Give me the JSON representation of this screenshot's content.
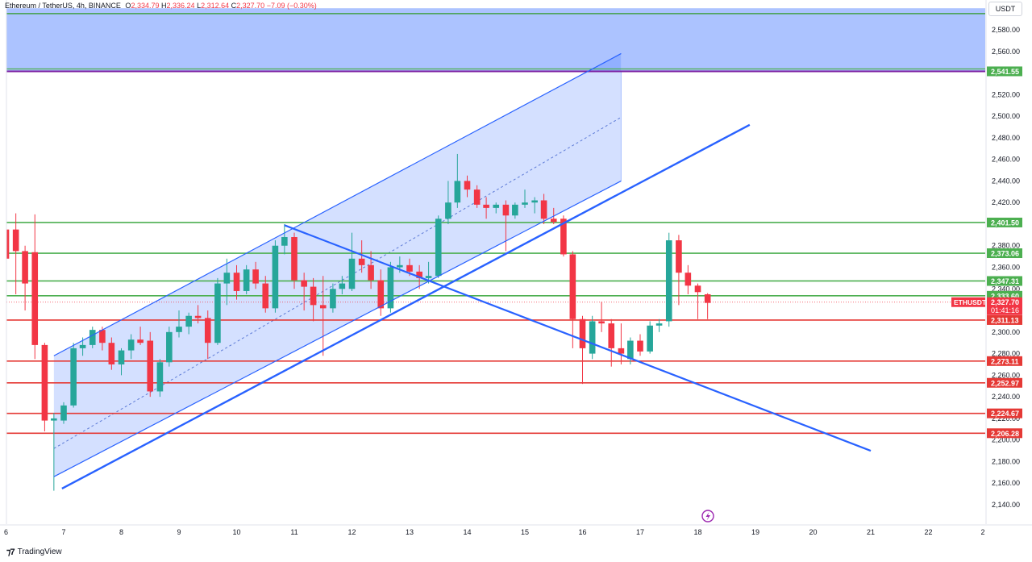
{
  "header": {
    "symbol": "Ethereum / TetherUS, 4h, BINANCE",
    "o_label": "O",
    "o_value": "2,334.79",
    "h_label": "H",
    "h_value": "2,336.24",
    "l_label": "L",
    "l_value": "2,312.64",
    "c_label": "C",
    "c_value": "2,327.70",
    "change": "−7.09 (−0.30%)"
  },
  "currency_button": "USDT",
  "footer": {
    "brand": "TradingView"
  },
  "colors": {
    "up": "#26a69a",
    "down": "#f23645",
    "green_level": "#4caf50",
    "red_level": "#e53935",
    "channel": "#2962ff",
    "zone": "#a8c0ff"
  },
  "chart_data": {
    "type": "candlestick",
    "x_ticks": [
      "6",
      "7",
      "8",
      "9",
      "10",
      "11",
      "12",
      "13",
      "14",
      "15",
      "16",
      "17",
      "18",
      "19",
      "20",
      "21",
      "22",
      "2"
    ],
    "y_ticks": [
      "2,580.00",
      "2,560.00",
      "2,540.00",
      "2,520.00",
      "2,500.00",
      "2,480.00",
      "2,460.00",
      "2,440.00",
      "2,420.00",
      "2,400.00",
      "2,380.00",
      "2,360.00",
      "2,340.00",
      "2,320.00",
      "2,300.00",
      "2,280.00",
      "2,260.00",
      "2,240.00",
      "2,220.00",
      "2,200.00",
      "2,180.00",
      "2,160.00",
      "2,140.00"
    ],
    "ylim": [
      2130,
      2600
    ],
    "price_levels_green": [
      {
        "value": 2541.55,
        "label": "2,541.55"
      },
      {
        "value": 2401.5,
        "label": "2,401.50"
      },
      {
        "value": 2373.06,
        "label": "2,373.06"
      },
      {
        "value": 2347.31,
        "label": "2,347.31"
      },
      {
        "value": 2333.6,
        "label": "2,333.60"
      }
    ],
    "price_levels_red": [
      {
        "value": 2311.13,
        "label": "2,311.13"
      },
      {
        "value": 2273.11,
        "label": "2,273.11"
      },
      {
        "value": 2252.97,
        "label": "2,252.97"
      },
      {
        "value": 2224.67,
        "label": "2,224.67"
      },
      {
        "value": 2206.28,
        "label": "2,206.28"
      }
    ],
    "current": {
      "symbol": "ETHUSDT",
      "price": "2,327.70",
      "countdown": "01:41:16",
      "value": 2327.7
    },
    "zone": {
      "from": 2541.55,
      "to": 2600
    },
    "candles": [
      {
        "x": 6.0,
        "o": 2395,
        "h": 2398,
        "l": 2360,
        "c": 2368
      },
      {
        "x": 6.17,
        "o": 2395,
        "h": 2410,
        "l": 2335,
        "c": 2375
      },
      {
        "x": 6.33,
        "o": 2375,
        "h": 2380,
        "l": 2320,
        "c": 2345
      },
      {
        "x": 6.5,
        "o": 2374,
        "h": 2409,
        "l": 2275,
        "c": 2288
      },
      {
        "x": 6.67,
        "o": 2288,
        "h": 2290,
        "l": 2208,
        "c": 2218
      },
      {
        "x": 6.83,
        "o": 2218,
        "h": 2225,
        "l": 2153,
        "c": 2220
      },
      {
        "x": 7.0,
        "o": 2218,
        "h": 2235,
        "l": 2215,
        "c": 2232
      },
      {
        "x": 7.17,
        "o": 2232,
        "h": 2290,
        "l": 2230,
        "c": 2285
      },
      {
        "x": 7.33,
        "o": 2285,
        "h": 2295,
        "l": 2278,
        "c": 2288
      },
      {
        "x": 7.5,
        "o": 2288,
        "h": 2305,
        "l": 2285,
        "c": 2302
      },
      {
        "x": 7.67,
        "o": 2302,
        "h": 2305,
        "l": 2283,
        "c": 2290
      },
      {
        "x": 7.83,
        "o": 2290,
        "h": 2295,
        "l": 2265,
        "c": 2270
      },
      {
        "x": 8.0,
        "o": 2270,
        "h": 2285,
        "l": 2260,
        "c": 2283
      },
      {
        "x": 8.17,
        "o": 2283,
        "h": 2298,
        "l": 2275,
        "c": 2293
      },
      {
        "x": 8.33,
        "o": 2293,
        "h": 2305,
        "l": 2288,
        "c": 2290
      },
      {
        "x": 8.5,
        "o": 2292,
        "h": 2300,
        "l": 2240,
        "c": 2245
      },
      {
        "x": 8.67,
        "o": 2245,
        "h": 2275,
        "l": 2240,
        "c": 2272
      },
      {
        "x": 8.83,
        "o": 2272,
        "h": 2305,
        "l": 2268,
        "c": 2300
      },
      {
        "x": 9.0,
        "o": 2300,
        "h": 2320,
        "l": 2295,
        "c": 2305
      },
      {
        "x": 9.17,
        "o": 2305,
        "h": 2318,
        "l": 2298,
        "c": 2315
      },
      {
        "x": 9.33,
        "o": 2315,
        "h": 2325,
        "l": 2308,
        "c": 2313
      },
      {
        "x": 9.5,
        "o": 2313,
        "h": 2320,
        "l": 2275,
        "c": 2290
      },
      {
        "x": 9.67,
        "o": 2290,
        "h": 2350,
        "l": 2288,
        "c": 2345
      },
      {
        "x": 9.83,
        "o": 2345,
        "h": 2368,
        "l": 2325,
        "c": 2355
      },
      {
        "x": 10.0,
        "o": 2355,
        "h": 2362,
        "l": 2330,
        "c": 2338
      },
      {
        "x": 10.17,
        "o": 2338,
        "h": 2362,
        "l": 2335,
        "c": 2358
      },
      {
        "x": 10.33,
        "o": 2358,
        "h": 2365,
        "l": 2340,
        "c": 2345
      },
      {
        "x": 10.5,
        "o": 2345,
        "h": 2352,
        "l": 2318,
        "c": 2322
      },
      {
        "x": 10.67,
        "o": 2322,
        "h": 2385,
        "l": 2318,
        "c": 2380
      },
      {
        "x": 10.83,
        "o": 2380,
        "h": 2400,
        "l": 2372,
        "c": 2388
      },
      {
        "x": 11.0,
        "o": 2388,
        "h": 2392,
        "l": 2340,
        "c": 2348
      },
      {
        "x": 11.17,
        "o": 2348,
        "h": 2355,
        "l": 2320,
        "c": 2342
      },
      {
        "x": 11.33,
        "o": 2342,
        "h": 2350,
        "l": 2310,
        "c": 2325
      },
      {
        "x": 11.5,
        "o": 2325,
        "h": 2352,
        "l": 2278,
        "c": 2322
      },
      {
        "x": 11.67,
        "o": 2322,
        "h": 2345,
        "l": 2318,
        "c": 2340
      },
      {
        "x": 11.83,
        "o": 2340,
        "h": 2352,
        "l": 2335,
        "c": 2345
      },
      {
        "x": 12.0,
        "o": 2340,
        "h": 2392,
        "l": 2338,
        "c": 2368
      },
      {
        "x": 12.17,
        "o": 2368,
        "h": 2385,
        "l": 2355,
        "c": 2362
      },
      {
        "x": 12.33,
        "o": 2362,
        "h": 2375,
        "l": 2340,
        "c": 2348
      },
      {
        "x": 12.5,
        "o": 2348,
        "h": 2358,
        "l": 2315,
        "c": 2322
      },
      {
        "x": 12.67,
        "o": 2322,
        "h": 2365,
        "l": 2318,
        "c": 2360
      },
      {
        "x": 12.83,
        "o": 2360,
        "h": 2370,
        "l": 2355,
        "c": 2362
      },
      {
        "x": 13.0,
        "o": 2362,
        "h": 2368,
        "l": 2352,
        "c": 2356
      },
      {
        "x": 13.17,
        "o": 2356,
        "h": 2362,
        "l": 2340,
        "c": 2350
      },
      {
        "x": 13.33,
        "o": 2350,
        "h": 2365,
        "l": 2345,
        "c": 2352
      },
      {
        "x": 13.5,
        "o": 2352,
        "h": 2408,
        "l": 2350,
        "c": 2405
      },
      {
        "x": 13.67,
        "o": 2405,
        "h": 2440,
        "l": 2400,
        "c": 2420
      },
      {
        "x": 13.83,
        "o": 2420,
        "h": 2465,
        "l": 2415,
        "c": 2440
      },
      {
        "x": 14.0,
        "o": 2440,
        "h": 2445,
        "l": 2425,
        "c": 2432
      },
      {
        "x": 14.17,
        "o": 2432,
        "h": 2436,
        "l": 2415,
        "c": 2418
      },
      {
        "x": 14.33,
        "o": 2418,
        "h": 2425,
        "l": 2405,
        "c": 2415
      },
      {
        "x": 14.5,
        "o": 2415,
        "h": 2420,
        "l": 2410,
        "c": 2418
      },
      {
        "x": 14.67,
        "o": 2418,
        "h": 2422,
        "l": 2375,
        "c": 2408
      },
      {
        "x": 14.83,
        "o": 2408,
        "h": 2420,
        "l": 2405,
        "c": 2418
      },
      {
        "x": 15.0,
        "o": 2418,
        "h": 2432,
        "l": 2415,
        "c": 2420
      },
      {
        "x": 15.17,
        "o": 2420,
        "h": 2425,
        "l": 2410,
        "c": 2422
      },
      {
        "x": 15.33,
        "o": 2422,
        "h": 2428,
        "l": 2400,
        "c": 2405
      },
      {
        "x": 15.5,
        "o": 2405,
        "h": 2415,
        "l": 2400,
        "c": 2402
      },
      {
        "x": 15.67,
        "o": 2405,
        "h": 2408,
        "l": 2370,
        "c": 2372
      },
      {
        "x": 15.83,
        "o": 2372,
        "h": 2375,
        "l": 2285,
        "c": 2312
      },
      {
        "x": 16.0,
        "o": 2312,
        "h": 2315,
        "l": 2252,
        "c": 2285
      },
      {
        "x": 16.17,
        "o": 2280,
        "h": 2315,
        "l": 2275,
        "c": 2310
      },
      {
        "x": 16.33,
        "o": 2310,
        "h": 2328,
        "l": 2300,
        "c": 2308
      },
      {
        "x": 16.5,
        "o": 2308,
        "h": 2312,
        "l": 2268,
        "c": 2285
      },
      {
        "x": 16.67,
        "o": 2285,
        "h": 2308,
        "l": 2270,
        "c": 2280
      },
      {
        "x": 16.83,
        "o": 2275,
        "h": 2295,
        "l": 2270,
        "c": 2292
      },
      {
        "x": 17.0,
        "o": 2292,
        "h": 2298,
        "l": 2278,
        "c": 2282
      },
      {
        "x": 17.17,
        "o": 2282,
        "h": 2310,
        "l": 2280,
        "c": 2306
      },
      {
        "x": 17.33,
        "o": 2306,
        "h": 2312,
        "l": 2300,
        "c": 2308
      },
      {
        "x": 17.5,
        "o": 2310,
        "h": 2392,
        "l": 2305,
        "c": 2385
      },
      {
        "x": 17.67,
        "o": 2385,
        "h": 2390,
        "l": 2325,
        "c": 2355
      },
      {
        "x": 17.83,
        "o": 2355,
        "h": 2362,
        "l": 2335,
        "c": 2343
      },
      {
        "x": 18.0,
        "o": 2343,
        "h": 2345,
        "l": 2312,
        "c": 2337
      },
      {
        "x": 18.17,
        "o": 2335,
        "h": 2336,
        "l": 2312,
        "c": 2327
      }
    ],
    "drawings": {
      "channel_upper": {
        "x1": 6.83,
        "y1": 2278,
        "x2": 16.67,
        "y2": 2558
      },
      "channel_lower": {
        "x1": 6.83,
        "y1": 2166,
        "x2": 16.67,
        "y2": 2440
      },
      "trendline_main": {
        "x1": 6.83,
        "y1": 2155,
        "x2": 18.9,
        "y2": 2492
      },
      "trendline_down": {
        "x1": 10.83,
        "y1": 2399,
        "x2": 21.0,
        "y2": 2190
      }
    }
  }
}
